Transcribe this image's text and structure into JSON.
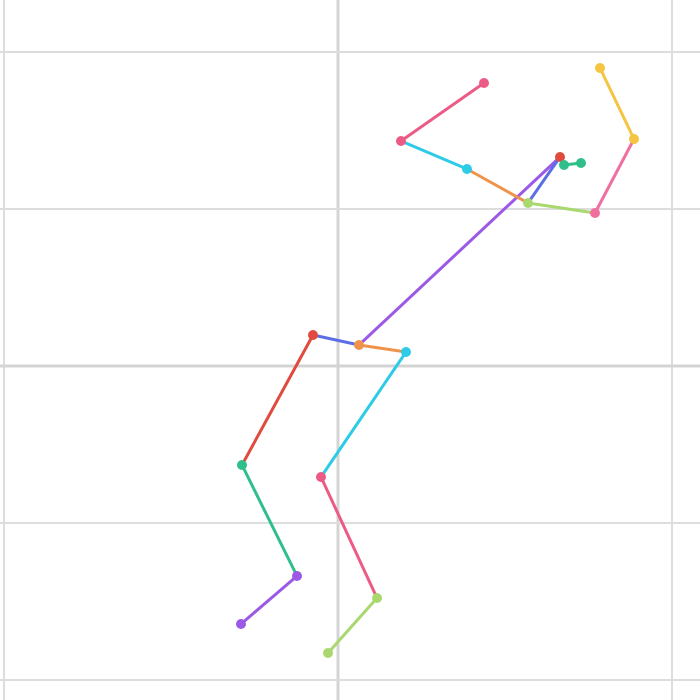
{
  "figure": {
    "background": "#ffffff",
    "grid_color": "#dddddd",
    "grid_major_color": "#d4d4d4"
  },
  "skeleton": {
    "joints": [
      {
        "name": "head",
        "color": "#e04a3f"
      },
      {
        "name": "neck",
        "color": "#e04a3f"
      },
      {
        "name": "right-shoulder",
        "color": "#2ebf8a"
      },
      {
        "name": "right-elbow",
        "color": "#9b59e6"
      },
      {
        "name": "right-wrist",
        "color": "#9b59e6"
      },
      {
        "name": "left-shoulder",
        "color": "#f0934a"
      },
      {
        "name": "left-elbow",
        "color": "#2ecbe6"
      },
      {
        "name": "left-wrist",
        "color": "#ec5b86"
      },
      {
        "name": "mid-hip",
        "color": "#a8d86e"
      },
      {
        "name": "right-hip",
        "color": "#f06fa0"
      },
      {
        "name": "right-knee",
        "color": "#f5c542"
      },
      {
        "name": "right-ankle",
        "color": "#f5c542"
      },
      {
        "name": "left-hip",
        "color": "#2ecbe6"
      },
      {
        "name": "left-knee",
        "color": "#ec5b86"
      },
      {
        "name": "left-ankle",
        "color": "#ec5b86"
      },
      {
        "name": "right-eye",
        "color": "#2ebf8a"
      },
      {
        "name": "left-eye",
        "color": "#2ebf8a"
      },
      {
        "name": "left-foot",
        "color": "#a8d86e"
      },
      {
        "name": "left-toe",
        "color": "#a8d86e"
      }
    ],
    "bones": [
      {
        "name": "neck-to-right-shoulder",
        "color": "#e04a3f"
      },
      {
        "name": "right-upper-arm",
        "color": "#2ebf8a"
      },
      {
        "name": "right-forearm",
        "color": "#9b59e6"
      },
      {
        "name": "neck-to-left-shoulder",
        "color": "#5b6ee6"
      },
      {
        "name": "left-shoulder-to-elbow",
        "color": "#f0934a"
      },
      {
        "name": "left-upper-arm",
        "color": "#2ecbe6"
      },
      {
        "name": "left-forearm",
        "color": "#ec5b86"
      },
      {
        "name": "left-hand",
        "color": "#a8d86e"
      },
      {
        "name": "torso",
        "color": "#9b59e6"
      },
      {
        "name": "neck-to-head",
        "color": "#5b6ee6"
      },
      {
        "name": "head-to-eye",
        "color": "#2ebf8a"
      },
      {
        "name": "hip-left",
        "color": "#f0934a"
      },
      {
        "name": "hip-right",
        "color": "#a8d86e"
      },
      {
        "name": "right-thigh",
        "color": "#f06fa0"
      },
      {
        "name": "right-shin",
        "color": "#f5c542"
      },
      {
        "name": "left-thigh",
        "color": "#2ecbe6"
      },
      {
        "name": "left-shin",
        "color": "#ec5b86"
      }
    ]
  }
}
